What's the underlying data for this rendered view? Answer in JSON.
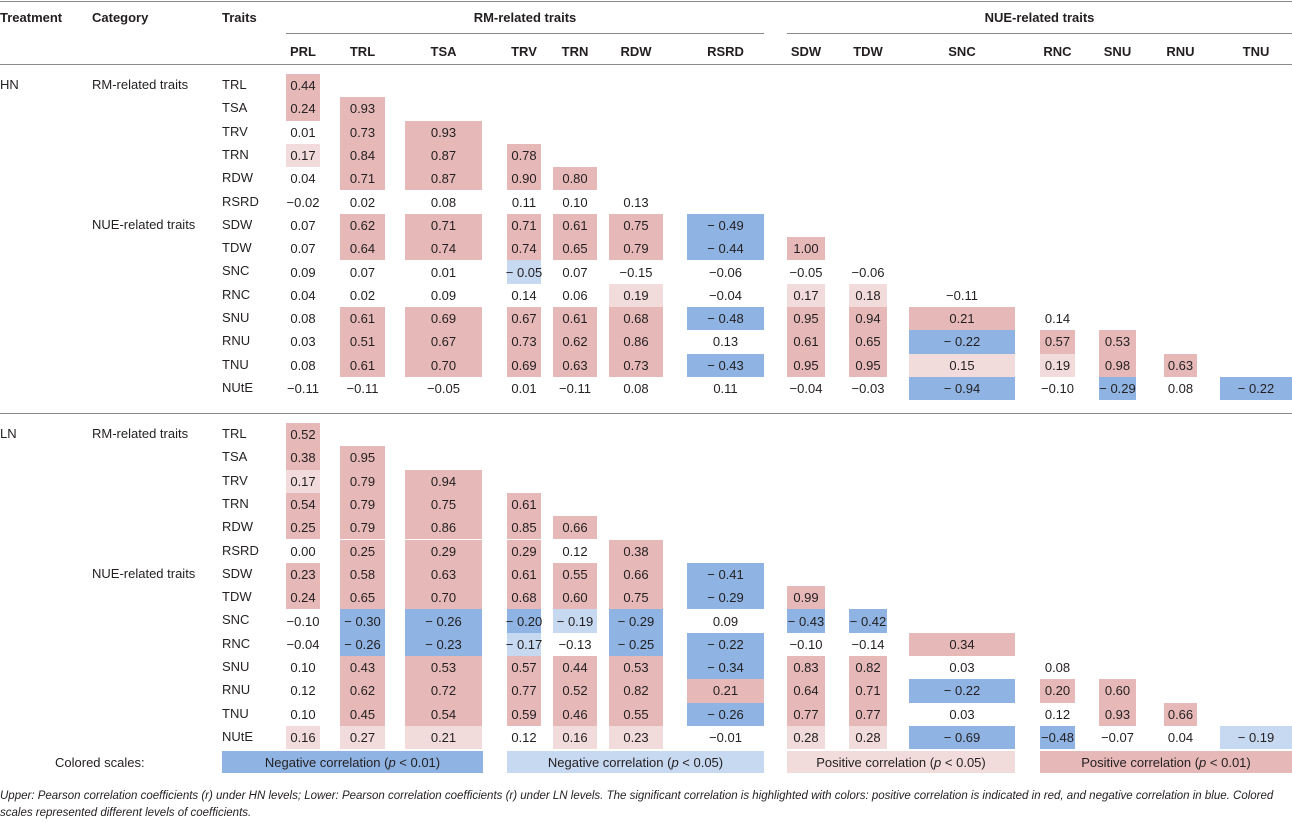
{
  "headers": {
    "treatment": "Treatment",
    "category": "Category",
    "traits": "Traits",
    "group_rm": "RM-related traits",
    "group_nue": "NUE-related traits",
    "columns": [
      "PRL",
      "TRL",
      "TSA",
      "TRV",
      "TRN",
      "RDW",
      "RSRD",
      "SDW",
      "TDW",
      "SNC",
      "RNC",
      "SNU",
      "RNU",
      "TNU"
    ]
  },
  "colors": {
    "neg_strong": "#8fb4e3",
    "neg_weak": "#c6d9f1",
    "pos_weak": "#f2dcdb",
    "pos_strong": "#e6b9b8"
  },
  "sections": [
    {
      "treatment": "HN",
      "rm_label": "RM-related traits",
      "nue_label": "NUE-related traits",
      "rows": [
        {
          "trait": "TRL",
          "cells": [
            [
              "0.44",
              "ps"
            ]
          ]
        },
        {
          "trait": "TSA",
          "cells": [
            [
              "0.24",
              "ps"
            ],
            [
              "0.93",
              "ps"
            ]
          ]
        },
        {
          "trait": "TRV",
          "cells": [
            [
              "0.01",
              ""
            ],
            [
              "0.73",
              "ps"
            ],
            [
              "0.93",
              "ps"
            ]
          ]
        },
        {
          "trait": "TRN",
          "cells": [
            [
              "0.17",
              "pw"
            ],
            [
              "0.84",
              "ps"
            ],
            [
              "0.87",
              "ps"
            ],
            [
              "0.78",
              "ps"
            ]
          ]
        },
        {
          "trait": "RDW",
          "cells": [
            [
              "0.04",
              ""
            ],
            [
              "0.71",
              "ps"
            ],
            [
              "0.87",
              "ps"
            ],
            [
              "0.90",
              "ps"
            ],
            [
              "0.80",
              "ps"
            ]
          ]
        },
        {
          "trait": "RSRD",
          "cells": [
            [
              "−0.02",
              ""
            ],
            [
              "0.02",
              ""
            ],
            [
              "0.08",
              ""
            ],
            [
              "0.11",
              ""
            ],
            [
              "0.10",
              ""
            ],
            [
              "0.13",
              ""
            ]
          ]
        },
        {
          "trait": "SDW",
          "cells": [
            [
              "0.07",
              ""
            ],
            [
              "0.62",
              "ps"
            ],
            [
              "0.71",
              "ps"
            ],
            [
              "0.71",
              "ps"
            ],
            [
              "0.61",
              "ps"
            ],
            [
              "0.75",
              "ps"
            ],
            [
              "− 0.49",
              "ns"
            ]
          ]
        },
        {
          "trait": "TDW",
          "cells": [
            [
              "0.07",
              ""
            ],
            [
              "0.64",
              "ps"
            ],
            [
              "0.74",
              "ps"
            ],
            [
              "0.74",
              "ps"
            ],
            [
              "0.65",
              "ps"
            ],
            [
              "0.79",
              "ps"
            ],
            [
              "− 0.44",
              "ns"
            ],
            [
              "1.00",
              "ps"
            ]
          ]
        },
        {
          "trait": "SNC",
          "cells": [
            [
              "0.09",
              ""
            ],
            [
              "0.07",
              ""
            ],
            [
              "0.01",
              ""
            ],
            [
              "− 0.05",
              "nw"
            ],
            [
              "0.07",
              ""
            ],
            [
              "−0.15",
              ""
            ],
            [
              "−0.06",
              ""
            ],
            [
              "−0.05",
              ""
            ],
            [
              "−0.06",
              ""
            ]
          ]
        },
        {
          "trait": "RNC",
          "cells": [
            [
              "0.04",
              ""
            ],
            [
              "0.02",
              ""
            ],
            [
              "0.09",
              ""
            ],
            [
              "0.14",
              ""
            ],
            [
              "0.06",
              ""
            ],
            [
              "0.19",
              "pw"
            ],
            [
              "−0.04",
              ""
            ],
            [
              "0.17",
              "pw"
            ],
            [
              "0.18",
              "pw"
            ],
            [
              "−0.11",
              ""
            ]
          ]
        },
        {
          "trait": "SNU",
          "cells": [
            [
              "0.08",
              ""
            ],
            [
              "0.61",
              "ps"
            ],
            [
              "0.69",
              "ps"
            ],
            [
              "0.67",
              "ps"
            ],
            [
              "0.61",
              "ps"
            ],
            [
              "0.68",
              "ps"
            ],
            [
              "− 0.48",
              "ns"
            ],
            [
              "0.95",
              "ps"
            ],
            [
              "0.94",
              "ps"
            ],
            [
              "0.21",
              "ps"
            ],
            [
              "0.14",
              ""
            ]
          ]
        },
        {
          "trait": "RNU",
          "cells": [
            [
              "0.03",
              ""
            ],
            [
              "0.51",
              "ps"
            ],
            [
              "0.67",
              "ps"
            ],
            [
              "0.73",
              "ps"
            ],
            [
              "0.62",
              "ps"
            ],
            [
              "0.86",
              "ps"
            ],
            [
              "0.13",
              ""
            ],
            [
              "0.61",
              "ps"
            ],
            [
              "0.65",
              "ps"
            ],
            [
              "− 0.22",
              "ns"
            ],
            [
              "0.57",
              "ps"
            ],
            [
              "0.53",
              "ps"
            ]
          ]
        },
        {
          "trait": "TNU",
          "cells": [
            [
              "0.08",
              ""
            ],
            [
              "0.61",
              "ps"
            ],
            [
              "0.70",
              "ps"
            ],
            [
              "0.69",
              "ps"
            ],
            [
              "0.63",
              "ps"
            ],
            [
              "0.73",
              "ps"
            ],
            [
              "− 0.43",
              "ns"
            ],
            [
              "0.95",
              "ps"
            ],
            [
              "0.95",
              "ps"
            ],
            [
              "0.15",
              "pw"
            ],
            [
              "0.19",
              "pw"
            ],
            [
              "0.98",
              "ps"
            ],
            [
              "0.63",
              "ps"
            ]
          ]
        },
        {
          "trait": "NUtE",
          "cells": [
            [
              "−0.11",
              ""
            ],
            [
              "−0.11",
              ""
            ],
            [
              "−0.05",
              ""
            ],
            [
              "0.01",
              ""
            ],
            [
              "−0.11",
              ""
            ],
            [
              "0.08",
              ""
            ],
            [
              "0.11",
              ""
            ],
            [
              "−0.04",
              ""
            ],
            [
              "−0.03",
              ""
            ],
            [
              "− 0.94",
              "ns"
            ],
            [
              "−0.10",
              ""
            ],
            [
              "− 0.29",
              "ns"
            ],
            [
              "0.08",
              ""
            ],
            [
              "− 0.22",
              "ns"
            ]
          ]
        }
      ]
    },
    {
      "treatment": "LN",
      "rm_label": "RM-related traits",
      "nue_label": "NUE-related traits",
      "rows": [
        {
          "trait": "TRL",
          "cells": [
            [
              "0.52",
              "ps"
            ]
          ]
        },
        {
          "trait": "TSA",
          "cells": [
            [
              "0.38",
              "ps"
            ],
            [
              "0.95",
              "ps"
            ]
          ]
        },
        {
          "trait": "TRV",
          "cells": [
            [
              "0.17",
              "pw"
            ],
            [
              "0.79",
              "ps"
            ],
            [
              "0.94",
              "ps"
            ]
          ]
        },
        {
          "trait": "TRN",
          "cells": [
            [
              "0.54",
              "ps"
            ],
            [
              "0.79",
              "ps"
            ],
            [
              "0.75",
              "ps"
            ],
            [
              "0.61",
              "ps"
            ]
          ]
        },
        {
          "trait": "RDW",
          "cells": [
            [
              "0.25",
              "ps"
            ],
            [
              "0.79",
              "ps"
            ],
            [
              "0.86",
              "ps"
            ],
            [
              "0.85",
              "ps"
            ],
            [
              "0.66",
              "ps"
            ]
          ]
        },
        {
          "trait": "RSRD",
          "cells": [
            [
              "0.00",
              ""
            ],
            [
              "0.25",
              "ps"
            ],
            [
              "0.29",
              "ps"
            ],
            [
              "0.29",
              "ps"
            ],
            [
              "0.12",
              ""
            ],
            [
              "0.38",
              "ps"
            ]
          ]
        },
        {
          "trait": "SDW",
          "cells": [
            [
              "0.23",
              "ps"
            ],
            [
              "0.58",
              "ps"
            ],
            [
              "0.63",
              "ps"
            ],
            [
              "0.61",
              "ps"
            ],
            [
              "0.55",
              "ps"
            ],
            [
              "0.66",
              "ps"
            ],
            [
              "− 0.41",
              "ns"
            ]
          ]
        },
        {
          "trait": "TDW",
          "cells": [
            [
              "0.24",
              "ps"
            ],
            [
              "0.65",
              "ps"
            ],
            [
              "0.70",
              "ps"
            ],
            [
              "0.68",
              "ps"
            ],
            [
              "0.60",
              "ps"
            ],
            [
              "0.75",
              "ps"
            ],
            [
              "− 0.29",
              "ns"
            ],
            [
              "0.99",
              "ps"
            ]
          ]
        },
        {
          "trait": "SNC",
          "cells": [
            [
              "−0.10",
              ""
            ],
            [
              "− 0.30",
              "ns"
            ],
            [
              "− 0.26",
              "ns"
            ],
            [
              "− 0.20",
              "ns"
            ],
            [
              "− 0.19",
              "nw"
            ],
            [
              "− 0.29",
              "ns"
            ],
            [
              "0.09",
              ""
            ],
            [
              "− 0.43",
              "ns"
            ],
            [
              "− 0.42",
              "ns"
            ]
          ]
        },
        {
          "trait": "RNC",
          "cells": [
            [
              "−0.04",
              ""
            ],
            [
              "− 0.26",
              "ns"
            ],
            [
              "− 0.23",
              "ns"
            ],
            [
              "− 0.17",
              "nw"
            ],
            [
              "−0.13",
              ""
            ],
            [
              "− 0.25",
              "ns"
            ],
            [
              "− 0.22",
              "ns"
            ],
            [
              "−0.10",
              ""
            ],
            [
              "−0.14",
              ""
            ],
            [
              "0.34",
              "ps"
            ]
          ]
        },
        {
          "trait": "SNU",
          "cells": [
            [
              "0.10",
              ""
            ],
            [
              "0.43",
              "ps"
            ],
            [
              "0.53",
              "ps"
            ],
            [
              "0.57",
              "ps"
            ],
            [
              "0.44",
              "ps"
            ],
            [
              "0.53",
              "ps"
            ],
            [
              "− 0.34",
              "ns"
            ],
            [
              "0.83",
              "ps"
            ],
            [
              "0.82",
              "ps"
            ],
            [
              "0.03",
              ""
            ],
            [
              "0.08",
              ""
            ]
          ]
        },
        {
          "trait": "RNU",
          "cells": [
            [
              "0.12",
              ""
            ],
            [
              "0.62",
              "ps"
            ],
            [
              "0.72",
              "ps"
            ],
            [
              "0.77",
              "ps"
            ],
            [
              "0.52",
              "ps"
            ],
            [
              "0.82",
              "ps"
            ],
            [
              "0.21",
              "ps"
            ],
            [
              "0.64",
              "ps"
            ],
            [
              "0.71",
              "ps"
            ],
            [
              "− 0.22",
              "ns"
            ],
            [
              "0.20",
              "ps"
            ],
            [
              "0.60",
              "ps"
            ]
          ]
        },
        {
          "trait": "TNU",
          "cells": [
            [
              "0.10",
              ""
            ],
            [
              "0.45",
              "ps"
            ],
            [
              "0.54",
              "ps"
            ],
            [
              "0.59",
              "ps"
            ],
            [
              "0.46",
              "ps"
            ],
            [
              "0.55",
              "ps"
            ],
            [
              "− 0.26",
              "ns"
            ],
            [
              "0.77",
              "ps"
            ],
            [
              "0.77",
              "ps"
            ],
            [
              "0.03",
              ""
            ],
            [
              "0.12",
              ""
            ],
            [
              "0.93",
              "ps"
            ],
            [
              "0.66",
              "ps"
            ]
          ]
        },
        {
          "trait": "NUtE",
          "cells": [
            [
              "0.16",
              "pw"
            ],
            [
              "0.27",
              "pw"
            ],
            [
              "0.21",
              "pw"
            ],
            [
              "0.12",
              ""
            ],
            [
              "0.16",
              "pw"
            ],
            [
              "0.23",
              "pw"
            ],
            [
              "−0.01",
              ""
            ],
            [
              "0.28",
              "pw"
            ],
            [
              "0.28",
              "pw"
            ],
            [
              "− 0.69",
              "ns"
            ],
            [
              "−0.48",
              "ns"
            ],
            [
              "−0.07",
              ""
            ],
            [
              "0.04",
              ""
            ],
            [
              "− 0.19",
              "nw"
            ]
          ]
        }
      ]
    }
  ],
  "legend": {
    "label": "Colored scales:",
    "neg_strong": {
      "pre": "Negative correlation (",
      "p": "p",
      "post": " < 0.01)"
    },
    "neg_weak": {
      "pre": "Negative correlation (",
      "p": "p",
      "post": " < 0.05)"
    },
    "pos_weak": {
      "pre": "Positive correlation (",
      "p": "p",
      "post": " < 0.05)"
    },
    "pos_strong": {
      "pre": "Positive correlation (",
      "p": "p",
      "post": " < 0.01)"
    }
  },
  "footnote": "Upper: Pearson correlation coefficients (r) under HN levels; Lower: Pearson correlation coefficients (r) under LN levels. The significant correlation is highlighted with colors: positive correlation is indicated in red, and negative correlation in blue. Colored scales represented different levels of coefficients."
}
